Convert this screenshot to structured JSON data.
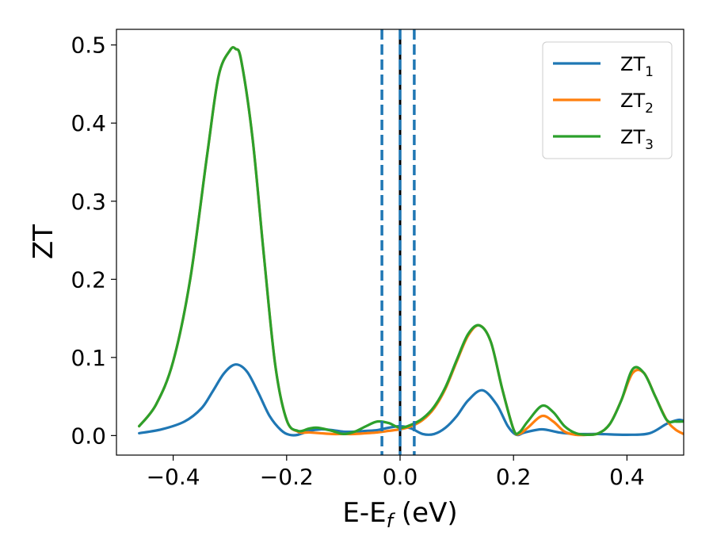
{
  "chart_data": {
    "type": "line",
    "xlabel": "E-E",
    "xlabel_sub": "f",
    "xlabel_unit": " (eV)",
    "ylabel": "ZT",
    "xlim": [
      -0.5,
      0.5
    ],
    "ylim": [
      -0.025,
      0.52
    ],
    "xticks": [
      -0.4,
      -0.2,
      0.0,
      0.2,
      0.4
    ],
    "xtick_labels": [
      "−0.4",
      "−0.2",
      "0.0",
      "0.2",
      "0.4"
    ],
    "yticks": [
      0.0,
      0.1,
      0.2,
      0.3,
      0.4,
      0.5
    ],
    "ytick_labels": [
      "0.0",
      "0.1",
      "0.2",
      "0.3",
      "0.4",
      "0.5"
    ],
    "grid": false,
    "legend_position": "top-right",
    "vlines": [
      {
        "x": 0.0,
        "color": "#000000",
        "style": "solid"
      },
      {
        "x": -0.032,
        "color": "#1f77b4",
        "style": "dashed"
      },
      {
        "x": 0.0,
        "color": "#1f77b4",
        "style": "dashed"
      },
      {
        "x": 0.025,
        "color": "#1f77b4",
        "style": "dashed"
      }
    ],
    "series": [
      {
        "name": "ZT",
        "name_sub": "1",
        "color": "#1f77b4",
        "x": [
          -0.46,
          -0.42,
          -0.38,
          -0.35,
          -0.33,
          -0.31,
          -0.29,
          -0.27,
          -0.25,
          -0.23,
          -0.21,
          -0.195,
          -0.18,
          -0.16,
          -0.14,
          -0.12,
          -0.1,
          -0.08,
          -0.06,
          -0.04,
          -0.02,
          0.0,
          0.02,
          0.04,
          0.06,
          0.08,
          0.1,
          0.12,
          0.145,
          0.17,
          0.19,
          0.205,
          0.22,
          0.25,
          0.28,
          0.31,
          0.35,
          0.4,
          0.44,
          0.47,
          0.49,
          0.5
        ],
        "y": [
          0.003,
          0.008,
          0.018,
          0.035,
          0.057,
          0.08,
          0.091,
          0.082,
          0.055,
          0.025,
          0.007,
          0.001,
          0.001,
          0.006,
          0.008,
          0.007,
          0.005,
          0.005,
          0.006,
          0.007,
          0.01,
          0.012,
          0.009,
          0.002,
          0.002,
          0.01,
          0.025,
          0.045,
          0.058,
          0.04,
          0.012,
          0.001,
          0.004,
          0.008,
          0.004,
          0.002,
          0.002,
          0.001,
          0.003,
          0.015,
          0.02,
          0.019
        ]
      },
      {
        "name": "ZT",
        "name_sub": "2",
        "color": "#ff7f0e",
        "x": [
          -0.46,
          -0.43,
          -0.4,
          -0.37,
          -0.34,
          -0.32,
          -0.3,
          -0.29,
          -0.28,
          -0.26,
          -0.24,
          -0.22,
          -0.2,
          -0.18,
          -0.16,
          -0.14,
          -0.12,
          -0.1,
          -0.08,
          -0.06,
          -0.04,
          -0.02,
          0.0,
          0.02,
          0.04,
          0.06,
          0.08,
          0.1,
          0.12,
          0.14,
          0.16,
          0.18,
          0.2,
          0.21,
          0.225,
          0.25,
          0.27,
          0.29,
          0.31,
          0.33,
          0.35,
          0.37,
          0.39,
          0.41,
          0.43,
          0.45,
          0.47,
          0.485,
          0.5
        ],
        "y": [
          0.012,
          0.04,
          0.095,
          0.2,
          0.36,
          0.46,
          0.493,
          0.495,
          0.48,
          0.38,
          0.23,
          0.09,
          0.02,
          0.005,
          0.004,
          0.003,
          0.002,
          0.002,
          0.002,
          0.003,
          0.004,
          0.006,
          0.008,
          0.012,
          0.02,
          0.035,
          0.06,
          0.095,
          0.128,
          0.141,
          0.12,
          0.06,
          0.008,
          0.002,
          0.01,
          0.025,
          0.018,
          0.005,
          0.001,
          0.001,
          0.003,
          0.015,
          0.045,
          0.08,
          0.08,
          0.05,
          0.02,
          0.008,
          0.002
        ]
      },
      {
        "name": "ZT",
        "name_sub": "3",
        "color": "#2ca02c",
        "x": [
          -0.46,
          -0.43,
          -0.4,
          -0.37,
          -0.34,
          -0.32,
          -0.3,
          -0.29,
          -0.28,
          -0.26,
          -0.24,
          -0.22,
          -0.2,
          -0.18,
          -0.16,
          -0.145,
          -0.12,
          -0.1,
          -0.08,
          -0.06,
          -0.04,
          -0.02,
          0.0,
          0.02,
          0.04,
          0.06,
          0.08,
          0.1,
          0.12,
          0.14,
          0.16,
          0.18,
          0.2,
          0.21,
          0.225,
          0.25,
          0.27,
          0.29,
          0.31,
          0.33,
          0.35,
          0.37,
          0.39,
          0.41,
          0.43,
          0.45,
          0.47,
          0.485,
          0.5
        ],
        "y": [
          0.012,
          0.04,
          0.095,
          0.2,
          0.36,
          0.46,
          0.493,
          0.495,
          0.48,
          0.38,
          0.23,
          0.09,
          0.02,
          0.006,
          0.009,
          0.01,
          0.006,
          0.002,
          0.005,
          0.012,
          0.018,
          0.016,
          0.01,
          0.014,
          0.022,
          0.037,
          0.062,
          0.097,
          0.13,
          0.141,
          0.12,
          0.06,
          0.008,
          0.004,
          0.018,
          0.038,
          0.03,
          0.012,
          0.003,
          0.001,
          0.003,
          0.015,
          0.045,
          0.085,
          0.08,
          0.05,
          0.02,
          0.018,
          0.018
        ]
      }
    ]
  }
}
